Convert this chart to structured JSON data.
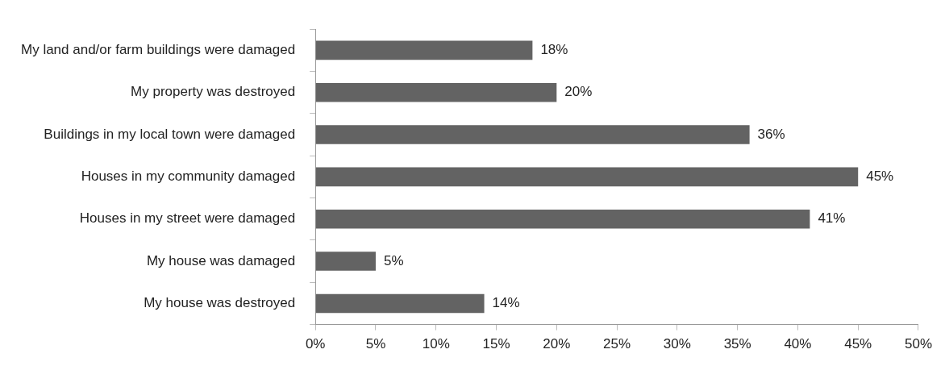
{
  "chart_data": {
    "type": "bar",
    "orientation": "horizontal",
    "categories": [
      "My land and/or farm buildings were damaged",
      "My property was destroyed",
      "Buildings in my local town were damaged",
      "Houses in my community damaged",
      "Houses in my street were damaged",
      "My house was damaged",
      "My house was destroyed"
    ],
    "values": [
      18,
      20,
      36,
      45,
      41,
      5,
      14
    ],
    "value_labels": [
      "18%",
      "20%",
      "36%",
      "45%",
      "41%",
      "5%",
      "14%"
    ],
    "color": "#636363",
    "xlim": [
      0,
      50
    ],
    "xticks": [
      {
        "value": 0,
        "label": "0%"
      },
      {
        "value": 5,
        "label": "5%"
      },
      {
        "value": 10,
        "label": "10%"
      },
      {
        "value": 15,
        "label": "15%"
      },
      {
        "value": 20,
        "label": "20%"
      },
      {
        "value": 25,
        "label": "25%"
      },
      {
        "value": 30,
        "label": "30%"
      },
      {
        "value": 35,
        "label": "35%"
      },
      {
        "value": 40,
        "label": "40%"
      },
      {
        "value": 45,
        "label": "45%"
      },
      {
        "value": 50,
        "label": "50%"
      }
    ],
    "grid": false,
    "legend": false
  }
}
